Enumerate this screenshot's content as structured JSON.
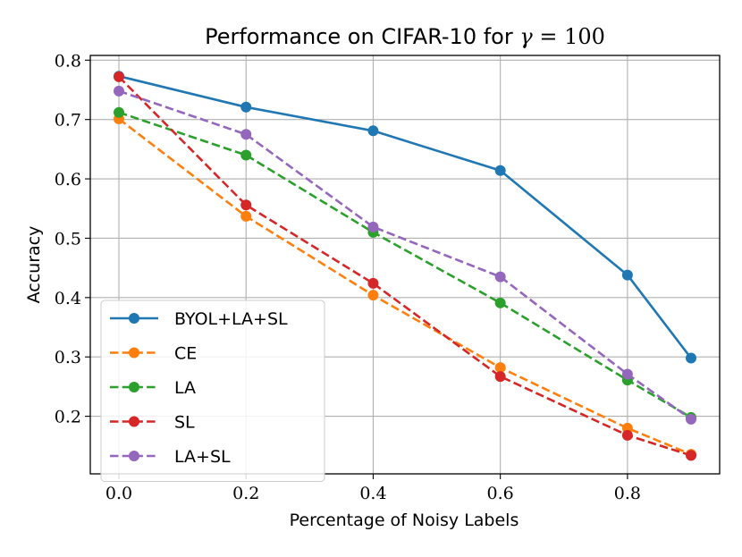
{
  "chart_data": {
    "type": "line",
    "title_prefix": "Performance on CIFAR-10 for ",
    "title_gamma": "γ",
    "title_suffix": " = 100",
    "xlabel": "Percentage of Noisy Labels",
    "ylabel": "Accuracy",
    "x": [
      0.0,
      0.2,
      0.4,
      0.6,
      0.8,
      0.9
    ],
    "xlim": [
      -0.045,
      0.945
    ],
    "ylim": [
      0.103,
      0.808
    ],
    "xticks": [
      0.0,
      0.2,
      0.4,
      0.6,
      0.8
    ],
    "xtick_labels": [
      "0.0",
      "0.2",
      "0.4",
      "0.6",
      "0.8"
    ],
    "yticks": [
      0.2,
      0.3,
      0.4,
      0.5,
      0.6,
      0.7,
      0.8
    ],
    "ytick_labels": [
      "0.2",
      "0.3",
      "0.4",
      "0.5",
      "0.6",
      "0.7",
      "0.8"
    ],
    "grid": true,
    "legend_position": "lower-left",
    "series": [
      {
        "name": "BYOL+LA+SL",
        "color": "#1f77b4",
        "style": "solid",
        "values": [
          0.773,
          0.721,
          0.681,
          0.614,
          0.438,
          0.298
        ]
      },
      {
        "name": "CE",
        "color": "#ff7f0e",
        "style": "dashed",
        "values": [
          0.701,
          0.537,
          0.404,
          0.282,
          0.18,
          0.136
        ]
      },
      {
        "name": "LA",
        "color": "#2ca02c",
        "style": "dashed",
        "values": [
          0.712,
          0.64,
          0.51,
          0.391,
          0.261,
          0.198
        ]
      },
      {
        "name": "SL",
        "color": "#d62728",
        "style": "dashed",
        "values": [
          0.772,
          0.556,
          0.424,
          0.267,
          0.168,
          0.134
        ]
      },
      {
        "name": "LA+SL",
        "color": "#9467bd",
        "style": "dashed",
        "values": [
          0.748,
          0.675,
          0.519,
          0.435,
          0.271,
          0.195
        ]
      }
    ]
  }
}
